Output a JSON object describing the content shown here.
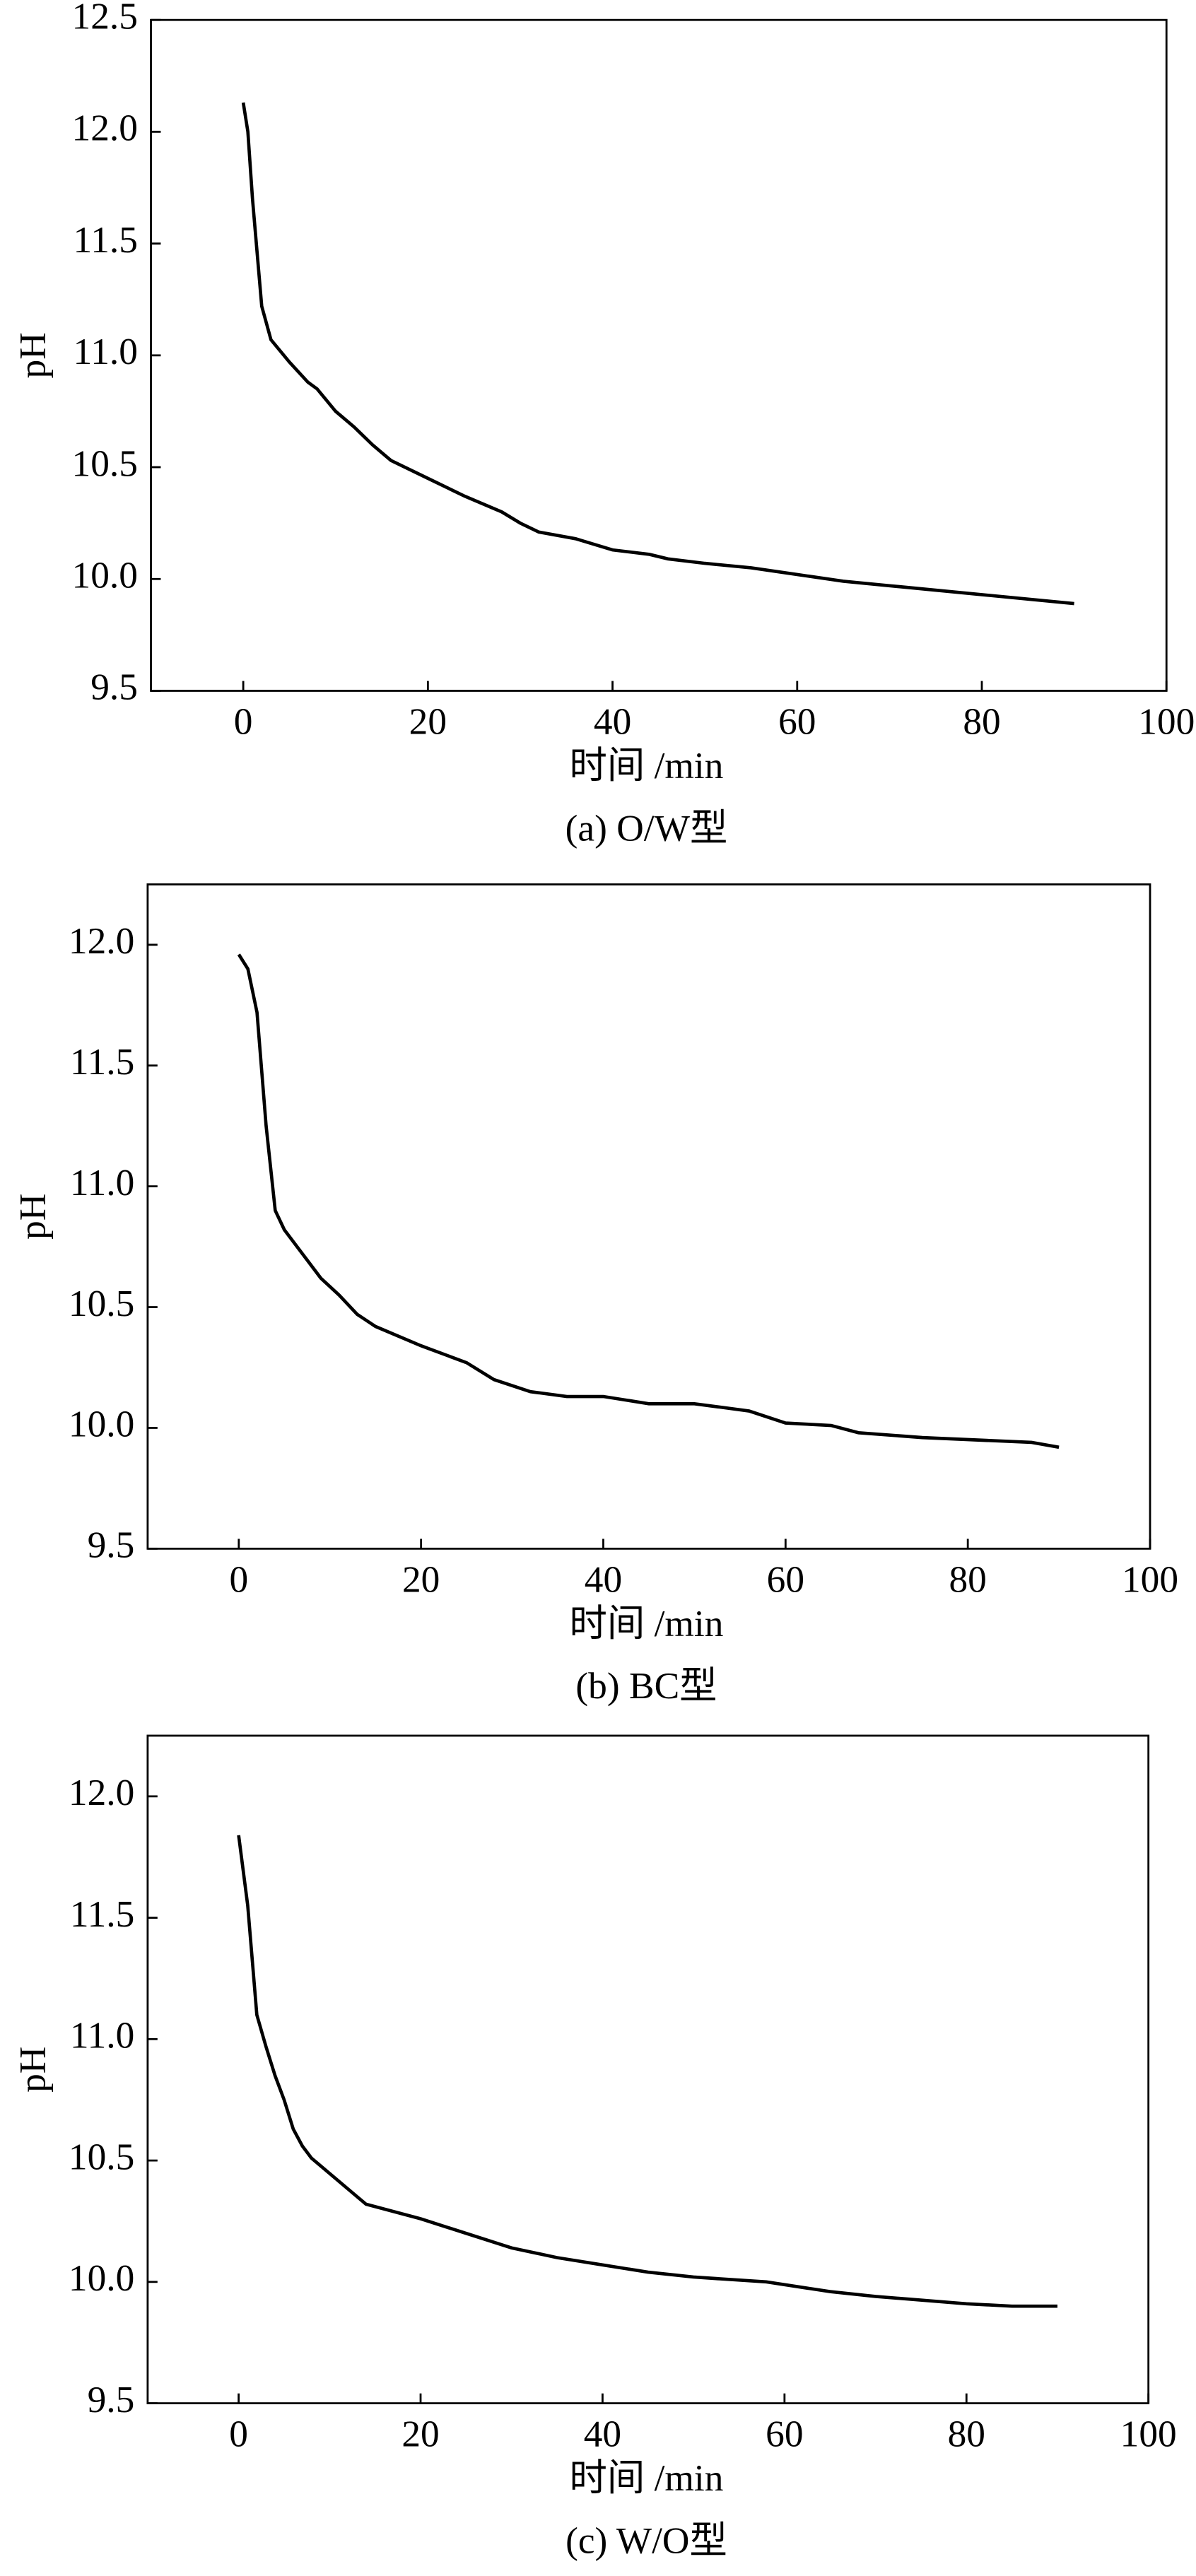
{
  "chart_data": [
    {
      "type": "line",
      "title": "(a) O/W型",
      "xlabel": "时间 /min",
      "ylabel": "pH",
      "color": "#000000",
      "xlim": [
        -10,
        100
      ],
      "ylim": [
        9.5,
        12.5
      ],
      "xticks": [
        0,
        20,
        40,
        60,
        80,
        100
      ],
      "yticks": [
        9.5,
        {
          "value": 10,
          "label": "10.0"
        },
        10.5,
        {
          "value": 11,
          "label": "11.0"
        },
        11.5,
        {
          "value": 12,
          "label": "12.0"
        },
        12.5
      ],
      "x": [
        0,
        0.5,
        1,
        2,
        3,
        5,
        7,
        8,
        10,
        12,
        14,
        16,
        20,
        24,
        28,
        30,
        32,
        36,
        40,
        44,
        46,
        50,
        55,
        60,
        65,
        70,
        80,
        90
      ],
      "series": [
        {
          "name": "pH",
          "values": [
            12.13,
            12.0,
            11.7,
            11.22,
            11.07,
            10.97,
            10.88,
            10.85,
            10.75,
            10.68,
            10.6,
            10.53,
            10.45,
            10.37,
            10.3,
            10.25,
            10.21,
            10.18,
            10.13,
            10.11,
            10.09,
            10.07,
            10.05,
            10.02,
            9.99,
            9.97,
            9.93,
            9.89
          ]
        }
      ]
    },
    {
      "type": "line",
      "title": "(b) BC型",
      "xlabel": "时间 /min",
      "ylabel": "pH",
      "color": "#000000",
      "xlim": [
        -10,
        100
      ],
      "ylim": [
        9.5,
        12.25
      ],
      "xticks": [
        0,
        20,
        40,
        60,
        80,
        100
      ],
      "yticks": [
        9.5,
        {
          "value": 10,
          "label": "10.0"
        },
        10.5,
        {
          "value": 11,
          "label": "11.0"
        },
        11.5,
        {
          "value": 12,
          "label": "12.0"
        }
      ],
      "x": [
        0,
        1,
        2,
        3,
        4,
        5,
        7,
        9,
        11,
        13,
        15,
        20,
        25,
        28,
        32,
        36,
        40,
        45,
        50,
        56,
        60,
        65,
        68,
        75,
        87,
        90
      ],
      "series": [
        {
          "name": "pH",
          "values": [
            11.96,
            11.9,
            11.72,
            11.25,
            10.9,
            10.82,
            10.72,
            10.62,
            10.55,
            10.47,
            10.42,
            10.34,
            10.27,
            10.2,
            10.15,
            10.13,
            10.13,
            10.1,
            10.1,
            10.07,
            10.02,
            10.01,
            9.98,
            9.96,
            9.94,
            9.92
          ]
        }
      ]
    },
    {
      "type": "line",
      "title": "(c) W/O型",
      "xlabel": "时间 /min",
      "ylabel": "pH",
      "color": "#000000",
      "xlim": [
        -10,
        100
      ],
      "ylim": [
        9.5,
        12.25
      ],
      "xticks": [
        0,
        20,
        40,
        60,
        80,
        100
      ],
      "yticks": [
        9.5,
        {
          "value": 10,
          "label": "10.0"
        },
        10.5,
        {
          "value": 11,
          "label": "11.0"
        },
        11.5,
        {
          "value": 12,
          "label": "12.0"
        }
      ],
      "x": [
        0,
        1,
        2,
        3,
        4,
        5,
        6,
        7,
        8,
        14,
        20,
        25,
        30,
        35,
        40,
        45,
        50,
        58,
        65,
        70,
        80,
        85,
        90
      ],
      "series": [
        {
          "name": "pH",
          "values": [
            11.84,
            11.55,
            11.1,
            10.97,
            10.85,
            10.75,
            10.63,
            10.56,
            10.51,
            10.32,
            10.26,
            10.2,
            10.14,
            10.1,
            10.07,
            10.04,
            10.02,
            10.0,
            9.96,
            9.94,
            9.91,
            9.9,
            9.9
          ]
        }
      ]
    }
  ]
}
